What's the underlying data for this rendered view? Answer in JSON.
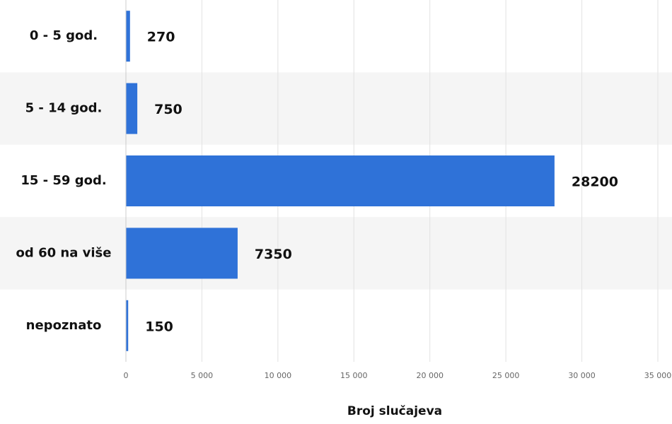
{
  "chart_data": {
    "type": "bar",
    "orientation": "horizontal",
    "x_axis_label": "Broj slučajeva",
    "categories": [
      "0 - 5 god.",
      "5 - 14 god.",
      "15 - 59 god.",
      "od 60 na više",
      "nepoznato"
    ],
    "values": [
      270,
      750,
      28200,
      7350,
      150
    ],
    "color": "#2f72d8",
    "xlim": [
      0,
      35000
    ],
    "xticks": [
      0,
      {
        "value": 5000,
        "label": "5 000"
      },
      {
        "value": 10000,
        "label": "10 000"
      },
      {
        "value": 15000,
        "label": "15 000"
      },
      {
        "value": 20000,
        "label": "20 000"
      },
      {
        "value": 25000,
        "label": "25 000"
      },
      {
        "value": 30000,
        "label": "30 000"
      },
      {
        "value": 35000,
        "label": "35 000"
      }
    ],
    "grid": true
  }
}
